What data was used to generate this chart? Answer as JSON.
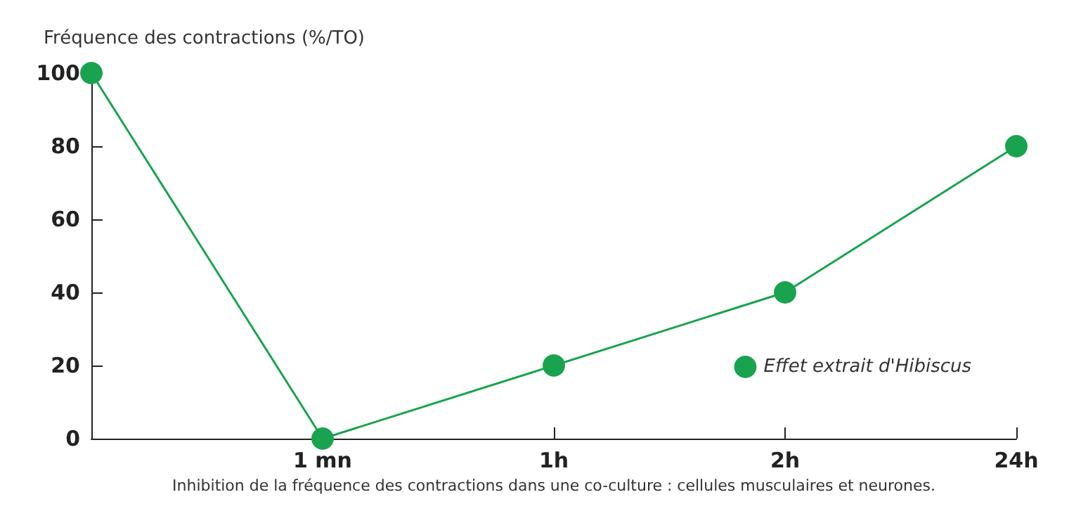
{
  "chart_data": {
    "type": "line",
    "ylabel": "Fréquence des contractions (%/TO)",
    "xlabel": "Inhibition de la fréquence des contractions dans une co-culture : cellules musculaires et neurones.",
    "categories": [
      null,
      "1 mn",
      "1h",
      "2h",
      "24h"
    ],
    "series": [
      {
        "name": "Effet extrait d'Hibiscus",
        "color": "#1aa34f",
        "values": [
          100,
          0,
          20,
          40,
          80
        ]
      }
    ],
    "ylim": [
      0,
      100
    ],
    "yticks": [
      0,
      20,
      40,
      60,
      80,
      100
    ],
    "grid": false,
    "legend": "bottom right",
    "marker": "circle",
    "line_style": "solid"
  }
}
